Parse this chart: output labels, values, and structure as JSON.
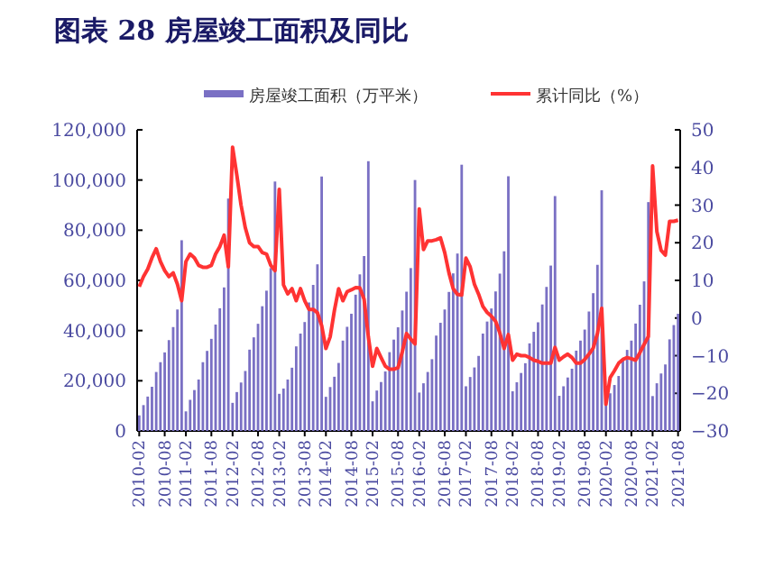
{
  "chart_data": {
    "type": "bar",
    "title": "图表 28 房屋竣工面积及同比",
    "categories": [
      "2010-02",
      null,
      null,
      null,
      null,
      null,
      "2010-08",
      null,
      null,
      null,
      null,
      "2011-02",
      null,
      null,
      null,
      null,
      null,
      "2011-08",
      null,
      null,
      null,
      null,
      "2012-02",
      null,
      null,
      null,
      null,
      null,
      "2012-08",
      null,
      null,
      null,
      null,
      "2013-02",
      null,
      null,
      null,
      null,
      null,
      "2013-08",
      null,
      null,
      null,
      null,
      "2014-02",
      null,
      null,
      null,
      null,
      null,
      "2014-08",
      null,
      null,
      null,
      null,
      "2015-02",
      null,
      null,
      null,
      null,
      null,
      "2015-08",
      null,
      null,
      null,
      null,
      "2016-02",
      null,
      null,
      null,
      null,
      null,
      "2016-08",
      null,
      null,
      null,
      null,
      "2017-02",
      null,
      null,
      null,
      null,
      null,
      "2017-08",
      null,
      null,
      null,
      null,
      "2018-02",
      null,
      null,
      null,
      null,
      null,
      "2018-08",
      null,
      null,
      null,
      null,
      "2019-02",
      null,
      null,
      null,
      null,
      null,
      "2019-08",
      null,
      null,
      null,
      null,
      "2020-02",
      null,
      null,
      null,
      null,
      null,
      "2020-08",
      null,
      null,
      null,
      null,
      "2021-02",
      null,
      null,
      null,
      null,
      null,
      "2021-08"
    ],
    "series": [
      {
        "name": "房屋竣工面积（万平米）",
        "color": "#7a70c4",
        "values": [
          6200,
          10300,
          13700,
          17600,
          23500,
          27400,
          31300,
          36200,
          41400,
          48400,
          76000,
          7800,
          12400,
          16300,
          20500,
          27400,
          31900,
          36700,
          42400,
          48900,
          57200,
          92600,
          11200,
          15500,
          19300,
          23900,
          32400,
          37300,
          42700,
          49700,
          55900,
          64900,
          99400,
          14800,
          16900,
          20500,
          25200,
          33700,
          38800,
          43400,
          51200,
          58200,
          66400,
          101400,
          13600,
          17500,
          21600,
          27100,
          36000,
          41500,
          46700,
          54300,
          62400,
          69700,
          107500,
          11800,
          16100,
          19500,
          23700,
          31400,
          36400,
          41300,
          48000,
          55500,
          64900,
          100000,
          15300,
          19000,
          23500,
          28600,
          38000,
          43100,
          48400,
          55400,
          62800,
          70700,
          106100,
          17800,
          21500,
          25300,
          29900,
          38800,
          43600,
          48800,
          55600,
          62700,
          71600,
          101500,
          15800,
          19400,
          23100,
          27000,
          34900,
          39500,
          43300,
          50400,
          57400,
          65900,
          93600,
          14000,
          17800,
          21300,
          24800,
          32000,
          36000,
          40400,
          47600,
          54900,
          66200,
          95900,
          10800,
          15000,
          18300,
          21900,
          28500,
          32300,
          36000,
          42800,
          50300,
          59600,
          91200,
          13900,
          19000,
          22900,
          26500,
          36500,
          42200,
          46700
        ]
      },
      {
        "name": "累计同比（%）",
        "type": "line",
        "axis": "y2",
        "color": "#ff3333",
        "values": [
          8.3,
          11,
          13,
          16,
          18.4,
          15,
          12.6,
          11,
          12,
          9,
          4.6,
          15,
          17,
          16,
          14,
          13.5,
          13.5,
          14,
          17,
          19,
          22,
          13.6,
          45.4,
          38,
          30,
          24,
          20,
          19,
          19,
          17.4,
          17,
          14,
          12.6,
          34.2,
          8.8,
          6.4,
          7.8,
          4.6,
          7.8,
          4.6,
          2.3,
          2.3,
          1.4,
          -2,
          -8.1,
          -5,
          2,
          7.8,
          4.6,
          7,
          7.5,
          8.1,
          8,
          5,
          -5,
          -12.8,
          -8.1,
          -10.5,
          -12.8,
          -13.6,
          -13.6,
          -13.2,
          -9,
          -4.1,
          -5.6,
          -6.9,
          29,
          18.2,
          20.5,
          20.5,
          20.8,
          21.3,
          17.4,
          12,
          7.8,
          6.3,
          6.1,
          15.9,
          13.6,
          9,
          6.3,
          3.1,
          1.5,
          0.5,
          -0.9,
          -4,
          -8.1,
          -4.4,
          -11.2,
          -9.6,
          -10,
          -10,
          -10.5,
          -11.2,
          -11.5,
          -12,
          -12,
          -12,
          -7.8,
          -11.2,
          -10.3,
          -9.6,
          -10.5,
          -12,
          -12,
          -11,
          -9.6,
          -8,
          -4.1,
          2.6,
          -22.9,
          -15.8,
          -14,
          -12,
          -11,
          -10.5,
          -10.8,
          -11.2,
          -9.2,
          -7,
          -4.9,
          40.4,
          23,
          18,
          16.7,
          25.7,
          25.7,
          26
        ]
      }
    ],
    "ylim": [
      0,
      120000
    ],
    "yticks": [
      0,
      {
        "value": 20000,
        "label": "20,000"
      },
      {
        "value": 40000,
        "label": "40,000"
      },
      {
        "value": 60000,
        "label": "60,000"
      },
      {
        "value": 80000,
        "label": "80,000"
      },
      {
        "value": 100000,
        "label": "100,000"
      },
      {
        "value": 120000,
        "label": "120,000"
      }
    ],
    "y2lim": [
      -30,
      50
    ],
    "y2ticks": [
      -30,
      -20,
      -10,
      0,
      10,
      20,
      30,
      40,
      50
    ],
    "legend": "top"
  }
}
